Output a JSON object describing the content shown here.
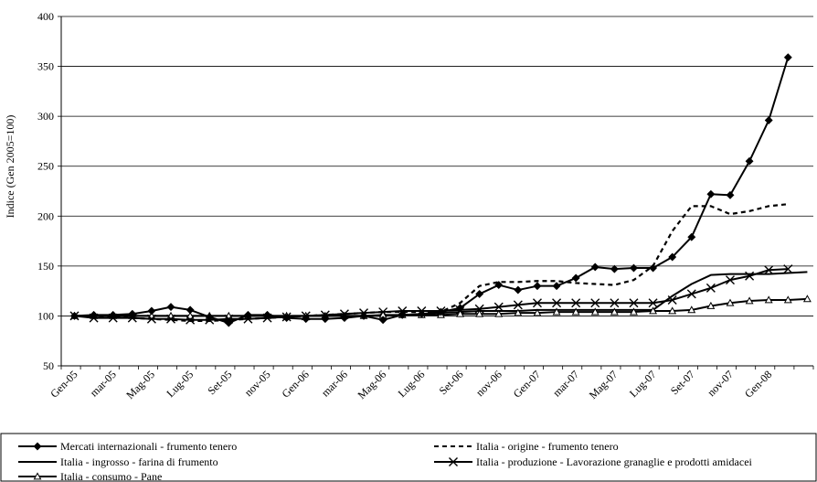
{
  "chart_data": {
    "type": "line",
    "ylabel": "Indice (Gen 2005=100)",
    "ylim": [
      50,
      400
    ],
    "yticks": [
      50,
      100,
      150,
      200,
      250,
      300,
      350,
      400
    ],
    "grid": "horizontal",
    "legend_position": "bottom",
    "x_tick_labels": [
      "Gen-05",
      "mar-05",
      "Mag-05",
      "Lug-05",
      "Set-05",
      "nov-05",
      "Gen-06",
      "mar-06",
      "Mag-06",
      "Lug-06",
      "Set-06",
      "nov-06",
      "Gen-07",
      "mar-07",
      "Mag-07",
      "Lug-07",
      "Set-07",
      "nov-07",
      "Gen-08"
    ],
    "x": [
      "Gen-05",
      "Feb-05",
      "mar-05",
      "Apr-05",
      "Mag-05",
      "Giu-05",
      "Lug-05",
      "Ago-05",
      "Set-05",
      "Ott-05",
      "nov-05",
      "Dic-05",
      "Gen-06",
      "Feb-06",
      "mar-06",
      "Apr-06",
      "Mag-06",
      "Giu-06",
      "Lug-06",
      "Ago-06",
      "Set-06",
      "Ott-06",
      "nov-06",
      "Dic-06",
      "Gen-07",
      "Feb-07",
      "mar-07",
      "Apr-07",
      "Mag-07",
      "Giu-07",
      "Lug-07",
      "Ago-07",
      "Set-07",
      "Ott-07",
      "nov-07",
      "Dic-07",
      "Gen-08",
      "Feb-08",
      "Mar-08"
    ],
    "series": [
      {
        "name": "Mercati internazionali - frumento tenero",
        "marker": "diamond",
        "dash": "solid",
        "values": [
          100,
          101,
          101,
          102,
          105,
          109,
          106,
          99,
          93,
          101,
          101,
          98,
          97,
          97,
          98,
          100,
          96,
          101,
          102,
          104,
          108,
          122,
          131,
          126,
          130,
          130,
          138,
          149,
          147,
          148,
          148,
          159,
          179,
          222,
          221,
          255,
          296,
          359,
          null
        ]
      },
      {
        "name": "Italia - origine - frumento tenero",
        "marker": "none",
        "dash": "dashed",
        "values": [
          100,
          100,
          99,
          98,
          97,
          96,
          95,
          95,
          96,
          97,
          98,
          99,
          100,
          101,
          102,
          103,
          104,
          104,
          104,
          104,
          113,
          130,
          134,
          134,
          135,
          135,
          133,
          132,
          131,
          136,
          150,
          185,
          210,
          210,
          202,
          205,
          210,
          212,
          null
        ]
      },
      {
        "name": "Italia - ingrosso - farina di frumento",
        "marker": "none",
        "dash": "solid",
        "values": [
          100,
          100,
          100,
          100,
          100,
          100,
          100,
          100,
          100,
          100,
          100,
          100,
          100,
          100,
          100,
          100,
          100,
          101,
          102,
          103,
          104,
          105,
          105,
          105,
          106,
          106,
          106,
          106,
          106,
          106,
          106,
          120,
          132,
          141,
          142,
          142,
          142,
          143,
          144
        ]
      },
      {
        "name": "Italia - produzione - Lavorazione granaglie e prodotti amidacei",
        "marker": "x",
        "dash": "solid",
        "values": [
          100,
          98,
          98,
          98,
          97,
          97,
          96,
          96,
          97,
          97,
          98,
          99,
          100,
          101,
          102,
          103,
          104,
          105,
          105,
          105,
          106,
          107,
          109,
          111,
          113,
          113,
          113,
          113,
          113,
          113,
          113,
          116,
          122,
          128,
          136,
          140,
          146,
          147,
          null
        ]
      },
      {
        "name": "Italia - consumo - Pane",
        "marker": "triangle",
        "dash": "solid",
        "values": [
          100,
          100,
          100,
          100,
          100,
          100,
          100,
          100,
          100,
          100,
          100,
          100,
          100,
          100,
          100,
          100,
          101,
          101,
          101,
          101,
          102,
          102,
          102,
          103,
          103,
          104,
          104,
          104,
          104,
          104,
          105,
          105,
          106,
          110,
          113,
          115,
          116,
          116,
          117
        ]
      }
    ]
  }
}
